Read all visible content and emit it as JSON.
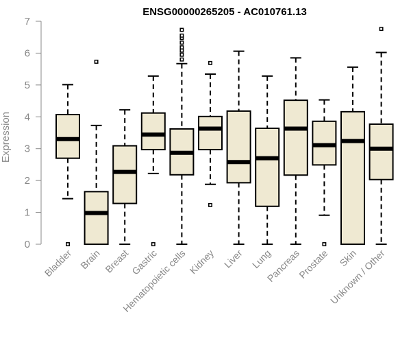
{
  "chart_data": {
    "type": "box",
    "title": "ENSG00000265205 - AC010761.13",
    "ylabel": "Expression",
    "ylim": [
      0,
      7
    ],
    "yticks": [
      0,
      1,
      2,
      3,
      4,
      5,
      6,
      7
    ],
    "colors": {
      "box_fill": "#efe9d2",
      "stroke": "#000000",
      "axis": "#888888"
    },
    "categories": [
      "Bladder",
      "Brain",
      "Breast",
      "Gastric",
      "Hematopoietic cells",
      "Kidney",
      "Liver",
      "Lung",
      "Pancreas",
      "Prostate",
      "Skin",
      "Unknown / Other"
    ],
    "boxes": [
      {
        "min": 1.43,
        "q1": 2.7,
        "median": 3.3,
        "q3": 4.07,
        "max": 5.01,
        "outliers": [
          0
        ]
      },
      {
        "min": 0,
        "q1": 0,
        "median": 0.98,
        "q3": 1.65,
        "max": 3.73,
        "outliers": [
          5.73
        ]
      },
      {
        "min": 0,
        "q1": 1.28,
        "median": 2.27,
        "q3": 3.09,
        "max": 4.22,
        "outliers": []
      },
      {
        "min": 2.22,
        "q1": 2.97,
        "median": 3.44,
        "q3": 4.12,
        "max": 5.28,
        "outliers": [
          0
        ]
      },
      {
        "min": 0,
        "q1": 2.18,
        "median": 2.87,
        "q3": 3.62,
        "max": 5.67,
        "outliers": [
          5.8,
          5.95,
          6.08,
          6.18,
          6.33,
          6.48,
          6.55,
          6.73
        ]
      },
      {
        "min": 1.88,
        "q1": 2.97,
        "median": 3.63,
        "q3": 4.01,
        "max": 5.34,
        "outliers": [
          5.69,
          1.23
        ]
      },
      {
        "min": 0,
        "q1": 1.93,
        "median": 2.58,
        "q3": 4.18,
        "max": 6.06,
        "outliers": []
      },
      {
        "min": 0,
        "q1": 1.19,
        "median": 2.7,
        "q3": 3.64,
        "max": 5.28,
        "outliers": []
      },
      {
        "min": 0,
        "q1": 2.17,
        "median": 3.63,
        "q3": 4.52,
        "max": 5.85,
        "outliers": []
      },
      {
        "min": 0.91,
        "q1": 2.49,
        "median": 3.11,
        "q3": 3.86,
        "max": 4.53,
        "outliers": [
          0
        ]
      },
      {
        "min": 0,
        "q1": 0,
        "median": 3.24,
        "q3": 4.16,
        "max": 5.56,
        "outliers": []
      },
      {
        "min": 0,
        "q1": 2.03,
        "median": 3.0,
        "q3": 3.77,
        "max": 6.02,
        "outliers": [
          6.76
        ]
      }
    ]
  }
}
